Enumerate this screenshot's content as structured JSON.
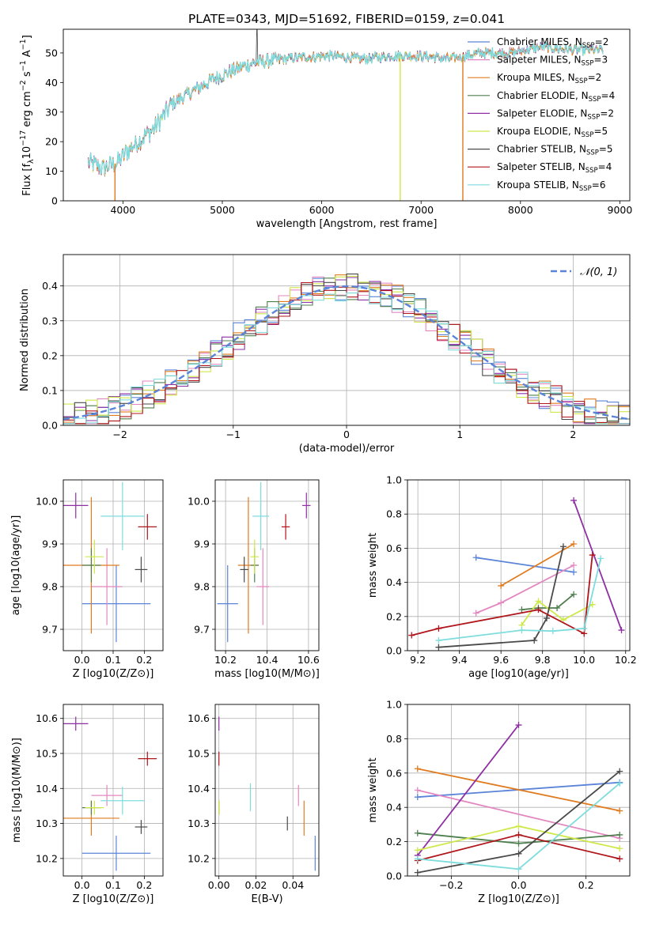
{
  "figure_title": "PLATE=0343, MJD=51692, FIBERID=0159, z=0.041",
  "colors": {
    "Chabrier MILES": "#5b84d8",
    "Salpeter MILES": "#e387c0",
    "Kroupa MILES": "#e07b1f",
    "Chabrier ELODIE": "#4f7f4f",
    "Salpeter ELODIE": "#8e2fa3",
    "Kroupa ELODIE": "#cfe84a",
    "Chabrier STELIB": "#4a4a4a",
    "Salpeter STELIB": "#b0151b",
    "Kroupa STELIB": "#7fdcdc"
  },
  "chart_data": [
    {
      "id": "spectrum",
      "type": "line",
      "xlabel": "wavelength [Angstrom, rest frame]",
      "ylabel": "Flux [fλ10⁻¹⁷ erg cm⁻² s⁻¹ A⁻¹]",
      "xlim": [
        3400,
        9100
      ],
      "ylim": [
        0,
        58
      ],
      "xticks": [
        4000,
        5000,
        6000,
        7000,
        8000,
        9000
      ],
      "yticks": [
        0,
        10,
        20,
        30,
        40,
        50
      ],
      "legend_position": "top-right",
      "continuum": {
        "x": [
          3650,
          3800,
          3950,
          4050,
          4150,
          4300,
          4500,
          4700,
          4900,
          5100,
          5300,
          5500,
          5800,
          6100,
          6400,
          6700,
          7000,
          7300,
          7600,
          7900,
          8200,
          8500,
          8800
        ],
        "y": [
          13,
          11,
          13,
          17,
          20,
          24,
          33,
          37,
          41,
          44,
          46.5,
          47.5,
          48.5,
          49,
          48,
          49,
          49,
          48,
          50,
          50,
          52,
          51,
          51
        ]
      },
      "series": [
        {
          "name": "Chabrier MILES",
          "label": "Chabrier MILES, N_SSP=2"
        },
        {
          "name": "Salpeter MILES",
          "label": "Salpeter MILES, N_SSP=3"
        },
        {
          "name": "Kroupa MILES",
          "label": "Kroupa MILES, N_SSP=2"
        },
        {
          "name": "Chabrier ELODIE",
          "label": "Chabrier ELODIE, N_SSP=4"
        },
        {
          "name": "Salpeter ELODIE",
          "label": "Salpeter ELODIE, N_SSP=2"
        },
        {
          "name": "Kroupa ELODIE",
          "label": "Kroupa ELODIE, N_SSP=5"
        },
        {
          "name": "Chabrier STELIB",
          "label": "Chabrier STELIB, N_SSP=5"
        },
        {
          "name": "Salpeter STELIB",
          "label": "Salpeter STELIB, N_SSP=4"
        },
        {
          "name": "Kroupa STELIB",
          "label": "Kroupa STELIB, N_SSP=6"
        }
      ],
      "drops": [
        {
          "series": "Kroupa MILES",
          "x": 3920
        },
        {
          "series": "Kroupa ELODIE",
          "x": 6790
        },
        {
          "series": "Kroupa MILES",
          "x": 7420
        }
      ]
    },
    {
      "id": "residuals",
      "type": "line",
      "xlabel": "(data-model)/error",
      "ylabel": "Normed distribution",
      "xlim": [
        -2.5,
        2.5
      ],
      "ylim": [
        0,
        0.49
      ],
      "xticks": [
        -2,
        -1,
        0,
        1,
        2
      ],
      "yticks": [
        0.0,
        0.1,
        0.2,
        0.3,
        0.4
      ],
      "legend": "𝒩(0, 1)",
      "legend_position": "top-right",
      "bin_width": 0.1,
      "model": "Gaussian, mean 0, sigma 1"
    },
    {
      "id": "age_vs_Z",
      "type": "scatter",
      "xlabel": "Z [log10(Z/Z⊙)]",
      "ylabel": "age  [log10(age/yr)]",
      "xlim": [
        -0.06,
        0.26
      ],
      "ylim": [
        9.65,
        10.05
      ],
      "xticks": [
        0.0,
        0.1,
        0.2
      ],
      "yticks": [
        9.7,
        9.8,
        9.9,
        10.0
      ],
      "points": [
        {
          "series": "Chabrier MILES",
          "x": 0.11,
          "y": 9.76,
          "xerr": 0.11,
          "yerr": 0.09
        },
        {
          "series": "Salpeter MILES",
          "x": 0.08,
          "y": 9.8,
          "xerr": 0.05,
          "yerr": 0.09
        },
        {
          "series": "Kroupa MILES",
          "x": 0.03,
          "y": 9.85,
          "xerr": 0.09,
          "yerr": 0.16
        },
        {
          "series": "Chabrier ELODIE",
          "x": 0.03,
          "y": 9.85,
          "xerr": 0.03,
          "yerr": 0.04
        },
        {
          "series": "Salpeter ELODIE",
          "x": -0.02,
          "y": 9.99,
          "xerr": 0.04,
          "yerr": 0.03
        },
        {
          "series": "Kroupa ELODIE",
          "x": 0.04,
          "y": 9.87,
          "xerr": 0.03,
          "yerr": 0.04
        },
        {
          "series": "Chabrier STELIB",
          "x": 0.19,
          "y": 9.84,
          "xerr": 0.02,
          "yerr": 0.03
        },
        {
          "series": "Salpeter STELIB",
          "x": 0.21,
          "y": 9.94,
          "xerr": 0.03,
          "yerr": 0.03
        },
        {
          "series": "Kroupa STELIB",
          "x": 0.13,
          "y": 9.965,
          "xerr": 0.07,
          "yerr": 0.08
        }
      ]
    },
    {
      "id": "age_vs_mass",
      "type": "scatter",
      "xlabel": "mass [log10(M/M⊙)]",
      "ylabel": "",
      "xlim": [
        10.15,
        10.65
      ],
      "ylim": [
        9.65,
        10.05
      ],
      "xticks": [
        10.2,
        10.4,
        10.6
      ],
      "yticks": [
        9.7,
        9.8,
        9.9,
        10.0
      ],
      "points": [
        {
          "series": "Chabrier MILES",
          "x": 10.21,
          "y": 9.76,
          "xerr": 0.05,
          "yerr": 0.09
        },
        {
          "series": "Salpeter MILES",
          "x": 10.38,
          "y": 9.8,
          "xerr": 0.03,
          "yerr": 0.09
        },
        {
          "series": "Kroupa MILES",
          "x": 10.31,
          "y": 9.85,
          "xerr": 0.05,
          "yerr": 0.16
        },
        {
          "series": "Chabrier ELODIE",
          "x": 10.34,
          "y": 9.85,
          "xerr": 0.02,
          "yerr": 0.04
        },
        {
          "series": "Salpeter ELODIE",
          "x": 10.59,
          "y": 9.99,
          "xerr": 0.02,
          "yerr": 0.03
        },
        {
          "series": "Kroupa ELODIE",
          "x": 10.34,
          "y": 9.87,
          "xerr": 0.02,
          "yerr": 0.04
        },
        {
          "series": "Chabrier STELIB",
          "x": 10.29,
          "y": 9.84,
          "xerr": 0.02,
          "yerr": 0.03
        },
        {
          "series": "Salpeter STELIB",
          "x": 10.49,
          "y": 9.94,
          "xerr": 0.02,
          "yerr": 0.03
        },
        {
          "series": "Kroupa STELIB",
          "x": 10.37,
          "y": 9.965,
          "xerr": 0.04,
          "yerr": 0.08
        }
      ]
    },
    {
      "id": "weight_vs_age",
      "type": "line",
      "xlabel": "age  [log10(age/yr)]",
      "ylabel": "mass weight",
      "xlim": [
        9.15,
        10.22
      ],
      "ylim": [
        0.0,
        1.0
      ],
      "xticks": [
        9.2,
        9.4,
        9.6,
        9.8,
        10.0,
        10.2
      ],
      "yticks": [
        0.0,
        0.2,
        0.4,
        0.6,
        0.8,
        1.0
      ],
      "series": [
        {
          "name": "Chabrier MILES",
          "x": [
            9.48,
            9.95
          ],
          "y": [
            0.545,
            0.46
          ]
        },
        {
          "name": "Salpeter MILES",
          "x": [
            9.48,
            9.6,
            9.95
          ],
          "y": [
            0.22,
            0.28,
            0.5
          ]
        },
        {
          "name": "Kroupa MILES",
          "x": [
            9.6,
            9.95
          ],
          "y": [
            0.38,
            0.625
          ]
        },
        {
          "name": "Chabrier ELODIE",
          "x": [
            9.7,
            9.78,
            9.87,
            9.95
          ],
          "y": [
            0.24,
            0.25,
            0.25,
            0.33
          ]
        },
        {
          "name": "Salpeter ELODIE",
          "x": [
            9.95,
            10.18
          ],
          "y": [
            0.88,
            0.12
          ]
        },
        {
          "name": "Kroupa ELODIE",
          "x": [
            9.7,
            9.78,
            9.9,
            10.04
          ],
          "y": [
            0.15,
            0.29,
            0.18,
            0.27
          ]
        },
        {
          "name": "Chabrier STELIB",
          "x": [
            9.3,
            9.76,
            9.82,
            9.9
          ],
          "y": [
            0.02,
            0.06,
            0.19,
            0.61
          ]
        },
        {
          "name": "Salpeter STELIB",
          "x": [
            9.17,
            9.3,
            9.78,
            10.0,
            10.04
          ],
          "y": [
            0.09,
            0.13,
            0.24,
            0.1,
            0.56
          ]
        },
        {
          "name": "Kroupa STELIB",
          "x": [
            9.3,
            9.7,
            9.85,
            10.0,
            10.08
          ],
          "y": [
            0.06,
            0.12,
            0.115,
            0.13,
            0.54
          ]
        }
      ]
    },
    {
      "id": "mass_vs_Z",
      "type": "scatter",
      "xlabel": "Z [log10(Z/Z⊙)]",
      "ylabel": "mass [log10(M/M⊙)]",
      "xlim": [
        -0.06,
        0.26
      ],
      "ylim": [
        10.15,
        10.64
      ],
      "xticks": [
        0.0,
        0.1,
        0.2
      ],
      "yticks": [
        10.2,
        10.3,
        10.4,
        10.5,
        10.6
      ],
      "points": [
        {
          "series": "Chabrier MILES",
          "x": 0.11,
          "y": 10.215,
          "xerr": 0.11,
          "yerr": 0.05
        },
        {
          "series": "Salpeter MILES",
          "x": 0.08,
          "y": 10.38,
          "xerr": 0.05,
          "yerr": 0.03
        },
        {
          "series": "Kroupa MILES",
          "x": 0.03,
          "y": 10.315,
          "xerr": 0.09,
          "yerr": 0.05
        },
        {
          "series": "Chabrier ELODIE",
          "x": 0.03,
          "y": 10.345,
          "xerr": 0.03,
          "yerr": 0.02
        },
        {
          "series": "Salpeter ELODIE",
          "x": -0.02,
          "y": 10.585,
          "xerr": 0.04,
          "yerr": 0.02
        },
        {
          "series": "Kroupa ELODIE",
          "x": 0.04,
          "y": 10.345,
          "xerr": 0.03,
          "yerr": 0.02
        },
        {
          "series": "Chabrier STELIB",
          "x": 0.19,
          "y": 10.29,
          "xerr": 0.02,
          "yerr": 0.02
        },
        {
          "series": "Salpeter STELIB",
          "x": 0.21,
          "y": 10.485,
          "xerr": 0.03,
          "yerr": 0.02
        },
        {
          "series": "Kroupa STELIB",
          "x": 0.13,
          "y": 10.365,
          "xerr": 0.07,
          "yerr": 0.04
        }
      ]
    },
    {
      "id": "mass_vs_ebv",
      "type": "scatter",
      "xlabel": "E(B-V)",
      "ylabel": "",
      "xlim": [
        -0.002,
        0.054
      ],
      "ylim": [
        10.15,
        10.64
      ],
      "xticks": [
        0.0,
        0.02,
        0.04
      ],
      "yticks": [
        10.2,
        10.3,
        10.4,
        10.5,
        10.6
      ],
      "points": [
        {
          "series": "Chabrier MILES",
          "x": 0.052,
          "y": 10.215,
          "xerr": 0,
          "yerr": 0.05
        },
        {
          "series": "Salpeter MILES",
          "x": 0.043,
          "y": 10.38,
          "xerr": 0,
          "yerr": 0.03
        },
        {
          "series": "Kroupa MILES",
          "x": 0.046,
          "y": 10.315,
          "xerr": 0,
          "yerr": 0.05
        },
        {
          "series": "Chabrier ELODIE",
          "x": 0.0,
          "y": 10.345,
          "xerr": 0,
          "yerr": 0.02
        },
        {
          "series": "Salpeter ELODIE",
          "x": 0.0,
          "y": 10.585,
          "xerr": 0,
          "yerr": 0.02
        },
        {
          "series": "Kroupa ELODIE",
          "x": 0.0,
          "y": 10.345,
          "xerr": 0,
          "yerr": 0.02
        },
        {
          "series": "Chabrier STELIB",
          "x": 0.037,
          "y": 10.3,
          "xerr": 0,
          "yerr": 0.02
        },
        {
          "series": "Salpeter STELIB",
          "x": 0.0,
          "y": 10.485,
          "xerr": 0,
          "yerr": 0.02
        },
        {
          "series": "Kroupa STELIB",
          "x": 0.017,
          "y": 10.375,
          "xerr": 0,
          "yerr": 0.04
        }
      ]
    },
    {
      "id": "weight_vs_Z",
      "type": "line",
      "xlabel": "Z [log10(Z/Z⊙)]",
      "ylabel": "mass weight",
      "xlim": [
        -0.33,
        0.33
      ],
      "ylim": [
        0.0,
        1.0
      ],
      "xticks": [
        -0.2,
        0.0,
        0.2
      ],
      "yticks": [
        0.0,
        0.2,
        0.4,
        0.6,
        0.8,
        1.0
      ],
      "series": [
        {
          "name": "Chabrier MILES",
          "x": [
            -0.3,
            0.3
          ],
          "y": [
            0.46,
            0.545
          ]
        },
        {
          "name": "Salpeter MILES",
          "x": [
            -0.3,
            0.3
          ],
          "y": [
            0.5,
            0.22
          ]
        },
        {
          "name": "Kroupa MILES",
          "x": [
            -0.3,
            0.3
          ],
          "y": [
            0.625,
            0.38
          ]
        },
        {
          "name": "Chabrier ELODIE",
          "x": [
            -0.3,
            0.0,
            0.3
          ],
          "y": [
            0.25,
            0.19,
            0.24
          ]
        },
        {
          "name": "Salpeter ELODIE",
          "x": [
            -0.3,
            0.0
          ],
          "y": [
            0.12,
            0.88
          ]
        },
        {
          "name": "Kroupa ELODIE",
          "x": [
            -0.3,
            0.0,
            0.3
          ],
          "y": [
            0.15,
            0.29,
            0.16
          ]
        },
        {
          "name": "Chabrier STELIB",
          "x": [
            -0.3,
            0.0,
            0.3
          ],
          "y": [
            0.02,
            0.13,
            0.61
          ]
        },
        {
          "name": "Salpeter STELIB",
          "x": [
            -0.3,
            0.0,
            0.3
          ],
          "y": [
            0.09,
            0.24,
            0.1
          ]
        },
        {
          "name": "Kroupa STELIB",
          "x": [
            -0.3,
            0.0,
            0.3
          ],
          "y": [
            0.1,
            0.04,
            0.54
          ]
        }
      ]
    }
  ]
}
